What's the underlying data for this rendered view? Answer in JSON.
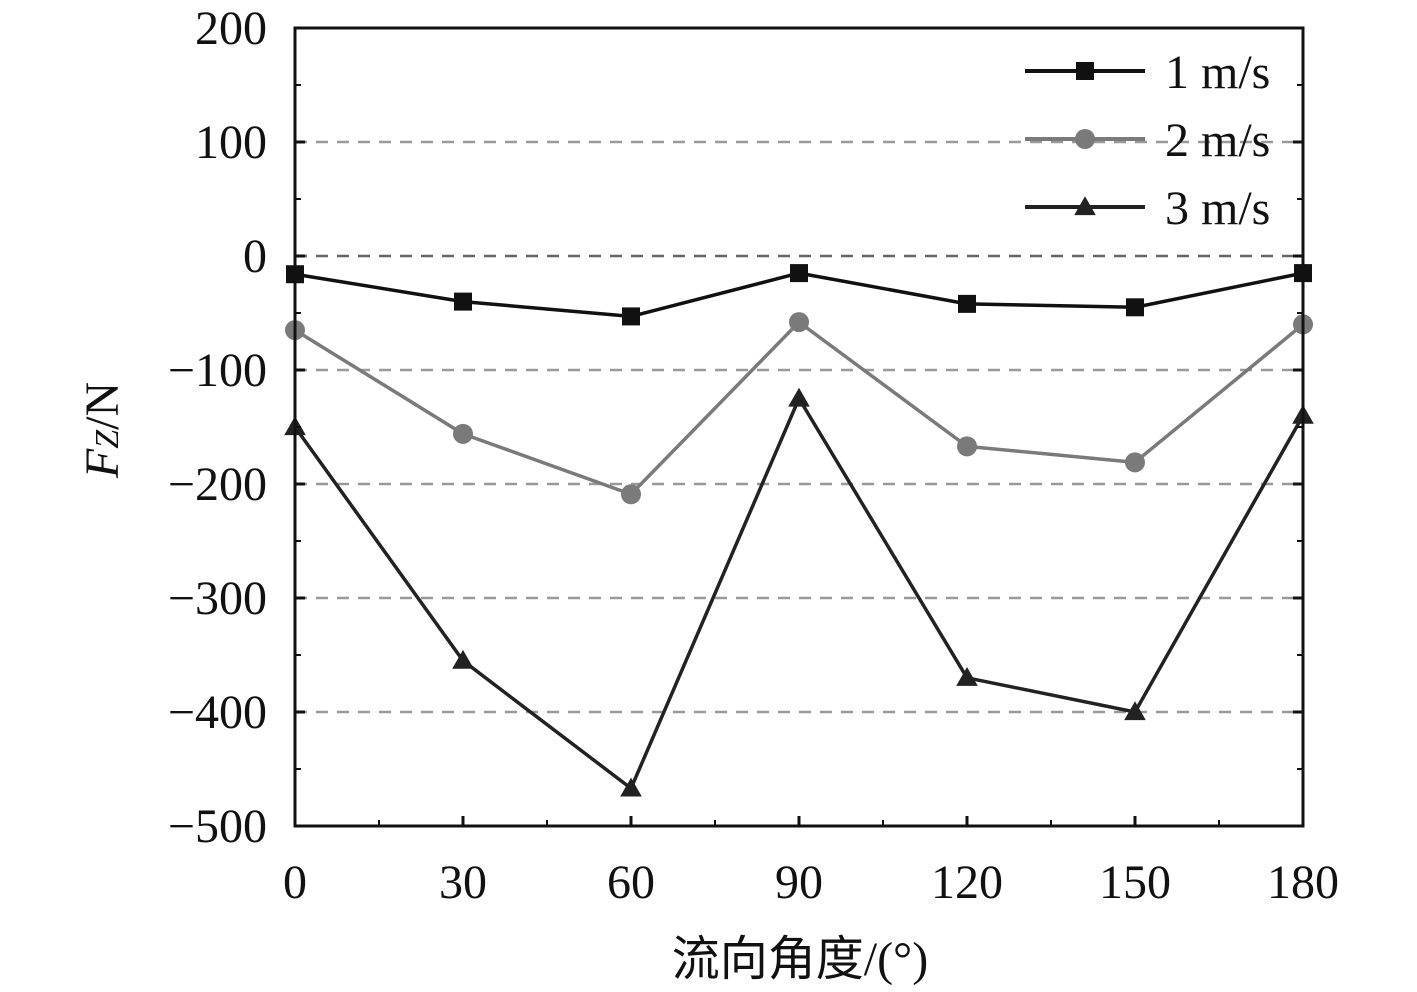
{
  "chart_data": {
    "type": "line",
    "x": [
      0,
      30,
      60,
      90,
      120,
      150,
      180
    ],
    "x_ticks": [
      "0",
      "30",
      "60",
      "90",
      "120",
      "150",
      "180"
    ],
    "y_ticks": [
      "200",
      "100",
      "0",
      "−100",
      "−200",
      "−300",
      "−400",
      "−500"
    ],
    "y_tick_values": [
      200,
      100,
      0,
      -100,
      -200,
      -300,
      -400,
      -500
    ],
    "xlim": [
      0,
      180
    ],
    "ylim": [
      -500,
      200
    ],
    "xlabel": "流向角度/(°)",
    "ylabel_main": "F",
    "ylabel_sub": "Z",
    "ylabel_unit": "/N",
    "grid": "dashed horizontal",
    "legend_position": "top-right",
    "series": [
      {
        "name": "1 m/s",
        "marker": "square",
        "color": "#111111",
        "values": [
          -16,
          -40,
          -53,
          -15,
          -42,
          -45,
          -15
        ]
      },
      {
        "name": "2 m/s",
        "marker": "circle",
        "color": "#7a7a7a",
        "values": [
          -65,
          -156,
          -209,
          -58,
          -167,
          -181,
          -60
        ]
      },
      {
        "name": "3 m/s",
        "marker": "triangle",
        "color": "#222222",
        "values": [
          -150,
          -355,
          -467,
          -125,
          -370,
          -400,
          -140
        ]
      }
    ]
  }
}
